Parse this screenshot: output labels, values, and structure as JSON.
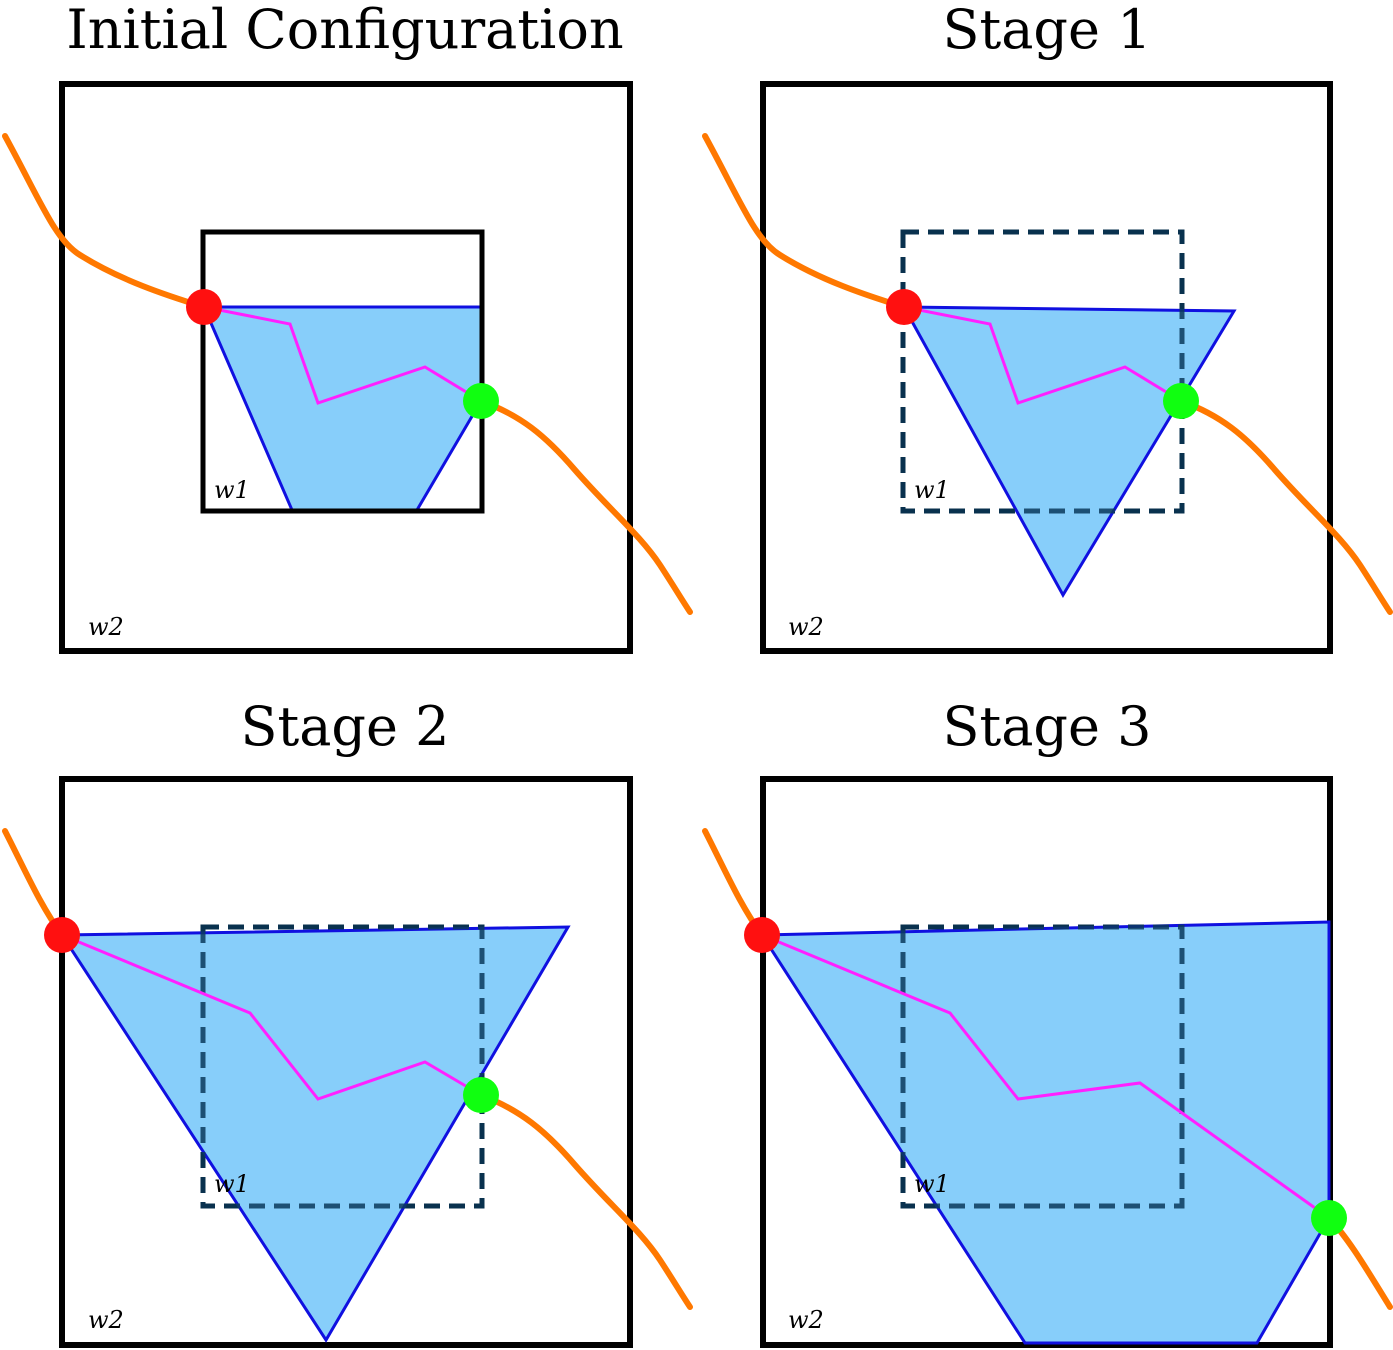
{
  "panels": [
    {
      "title": "Initial Configuration",
      "w1_label": "w1",
      "w2_label": "w2",
      "inner_style": "solid"
    },
    {
      "title": "Stage 1",
      "w1_label": "w1",
      "w2_label": "w2",
      "inner_style": "dashed"
    },
    {
      "title": "Stage 2",
      "w1_label": "w1",
      "w2_label": "w2",
      "inner_style": "dashed"
    },
    {
      "title": "Stage 3",
      "w1_label": "w1",
      "w2_label": "w2",
      "inner_style": "dashed"
    }
  ],
  "colors": {
    "region_fill": "#87cefa",
    "region_stroke": "#1010e0",
    "curve": "#ff7800",
    "path": "#ff20ff",
    "start_point": "#ff1010",
    "end_point": "#10ff10"
  }
}
